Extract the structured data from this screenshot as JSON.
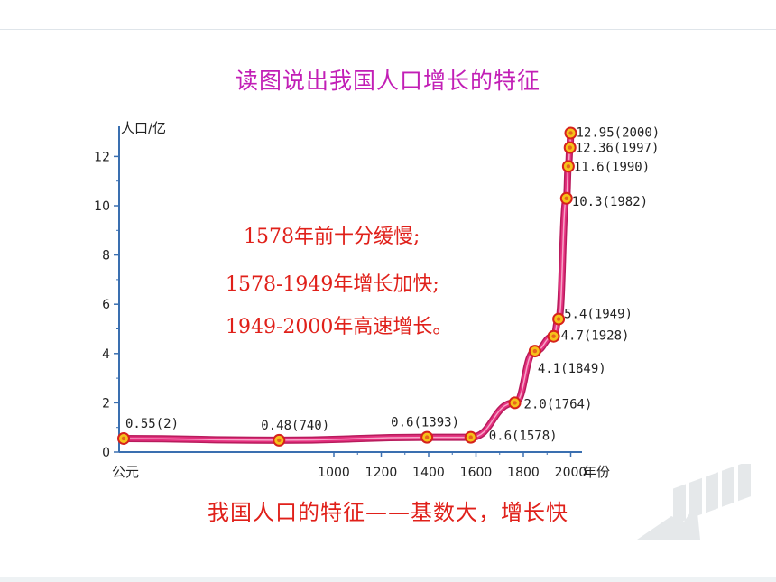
{
  "title": "读图说出我国人口增长的特征",
  "notes": [
    "1578年前十分缓慢;",
    "1578-1949年增长加快;",
    "1949-2000年高速增长。"
  ],
  "conclusion": "我国人口的特征——基数大，增长快",
  "colors": {
    "title": "#c21fb6",
    "notes": "#e0201a",
    "curve": "#e4317f",
    "marker": "#f5c21a"
  },
  "chart_data": {
    "type": "line",
    "ylabel": "人口/亿",
    "xlabel": "年份",
    "x_origin_label": "公元",
    "ylim": [
      0,
      13
    ],
    "y_ticks": [
      0,
      2,
      4,
      6,
      8,
      10,
      12
    ],
    "x_ticks": [
      1000,
      1200,
      1400,
      1600,
      1800,
      2000
    ],
    "grid": false,
    "points": [
      {
        "year": 2,
        "value": 0.55,
        "label": "0.55(2)"
      },
      {
        "year": 740,
        "value": 0.48,
        "label": "0.48(740)"
      },
      {
        "year": 1393,
        "value": 0.6,
        "label": "0.6(1393)"
      },
      {
        "year": 1578,
        "value": 0.6,
        "label": "0.6(1578)"
      },
      {
        "year": 1764,
        "value": 2.0,
        "label": "2.0(1764)"
      },
      {
        "year": 1849,
        "value": 4.1,
        "label": "4.1(1849)"
      },
      {
        "year": 1928,
        "value": 4.7,
        "label": "4.7(1928)"
      },
      {
        "year": 1949,
        "value": 5.4,
        "label": "5.4(1949)"
      },
      {
        "year": 1982,
        "value": 10.3,
        "label": "10.3(1982)"
      },
      {
        "year": 1990,
        "value": 11.6,
        "label": "11.6(1990)"
      },
      {
        "year": 1997,
        "value": 12.36,
        "label": "12.36(1997)"
      },
      {
        "year": 2000,
        "value": 12.95,
        "label": "12.95(2000)"
      }
    ]
  }
}
